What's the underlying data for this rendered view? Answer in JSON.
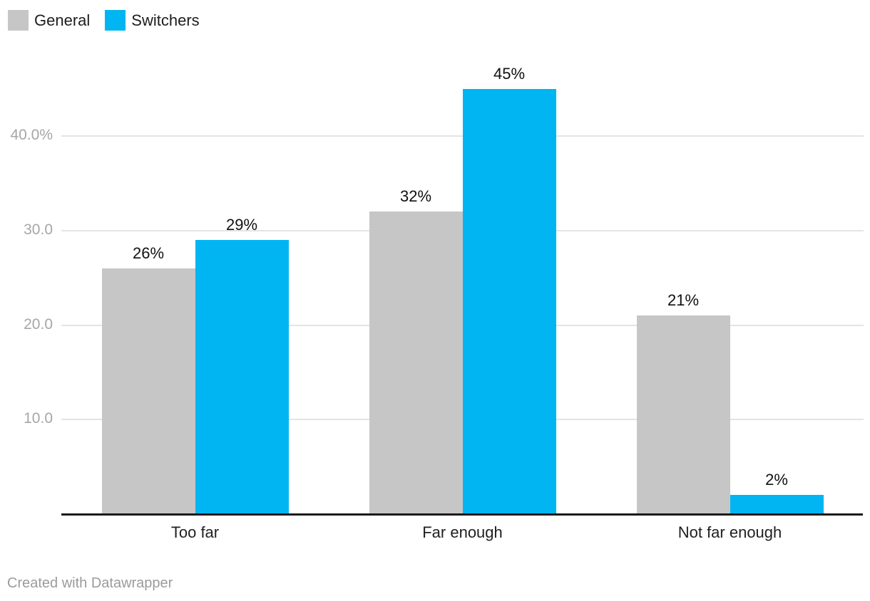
{
  "colors": {
    "background": "#ffffff",
    "series_general": "#c6c6c6",
    "series_switchers": "#00b5f2",
    "gridline": "#e4e4e4",
    "axis_line": "#1a1a1a",
    "tick_label": "#a6a6a6",
    "value_label": "#111111",
    "category_label": "#202020",
    "footer_text": "#9b9b9b"
  },
  "legend": {
    "items": [
      {
        "label": "General",
        "color": "#c6c6c6"
      },
      {
        "label": "Switchers",
        "color": "#00b5f2"
      }
    ]
  },
  "footer": {
    "text": "Created with Datawrapper"
  },
  "chart_data": {
    "type": "bar",
    "title": "",
    "xlabel": "",
    "ylabel": "",
    "categories": [
      "Too far",
      "Far enough",
      "Not far enough"
    ],
    "series": [
      {
        "name": "General",
        "color": "#c6c6c6",
        "values": [
          26,
          32,
          21
        ],
        "labels": [
          "26%",
          "32%",
          "21%"
        ]
      },
      {
        "name": "Switchers",
        "color": "#00b5f2",
        "values": [
          29,
          45,
          2
        ],
        "labels": [
          "29%",
          "45%",
          "2%"
        ]
      }
    ],
    "yticks": [
      {
        "value": 10,
        "label": "10.0"
      },
      {
        "value": 20,
        "label": "20.0"
      },
      {
        "value": 30,
        "label": "30.0"
      },
      {
        "value": 40,
        "label": "40.0%"
      }
    ],
    "ylim": [
      0,
      47.5
    ],
    "grid": true,
    "legend_position": "top-left"
  }
}
